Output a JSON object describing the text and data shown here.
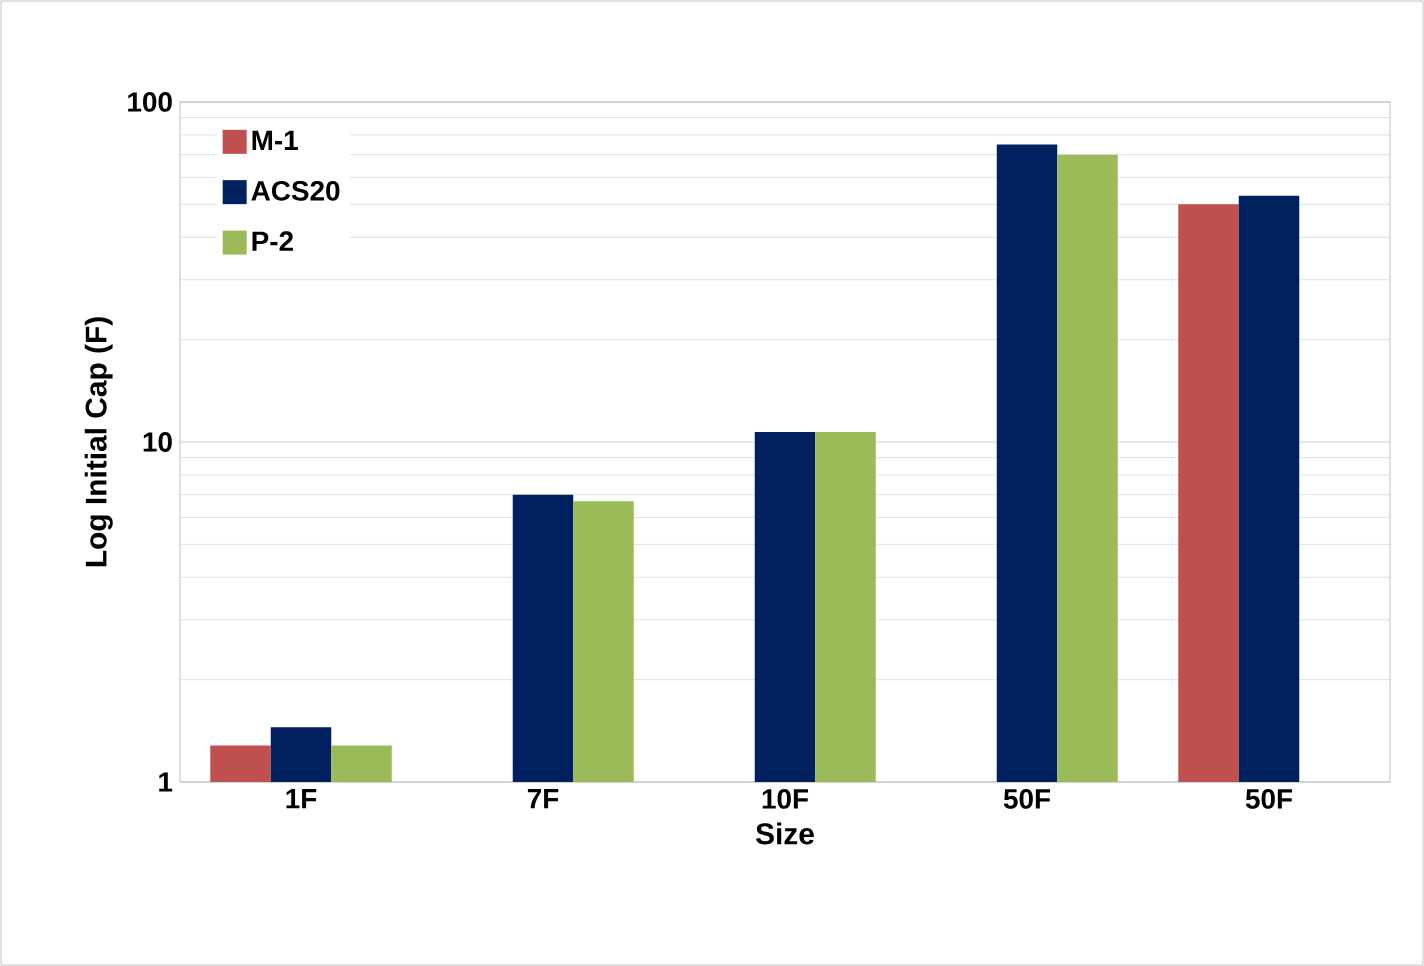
{
  "chart_data": {
    "type": "bar",
    "xlabel": "Size",
    "ylabel": "Log Initial Cap (F)",
    "categories": [
      "1F",
      "7F",
      "10F",
      "50F",
      "50F"
    ],
    "series": [
      {
        "name": "M-1",
        "color": "#c0504d",
        "values": [
          1.28,
          null,
          null,
          null,
          50
        ]
      },
      {
        "name": "ACS20",
        "color": "#002060",
        "values": [
          1.45,
          7.0,
          10.7,
          75,
          53
        ]
      },
      {
        "name": "P-2",
        "color": "#9bbb59",
        "values": [
          1.28,
          6.7,
          10.7,
          70,
          null
        ]
      }
    ],
    "log": "y",
    "ylim": [
      1,
      100
    ],
    "yticks": [
      1,
      10,
      100
    ],
    "grid": "y",
    "legend": "top left"
  }
}
